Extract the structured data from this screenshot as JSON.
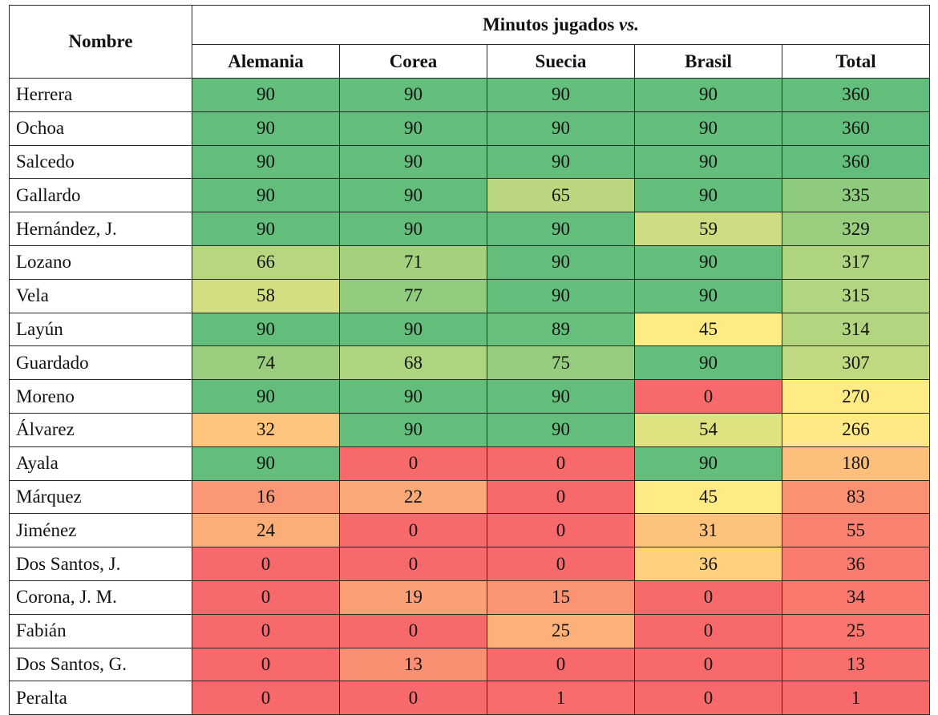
{
  "table": {
    "name_header": "Nombre",
    "group_header": "Minutos jugados",
    "group_header_suffix": "vs.",
    "columns": [
      "Alemania",
      "Corea",
      "Suecia",
      "Brasil",
      "Total"
    ],
    "rows": [
      {
        "name": "Herrera",
        "values": [
          "90",
          "90",
          "90",
          "90",
          "360"
        ]
      },
      {
        "name": "Ochoa",
        "values": [
          "90",
          "90",
          "90",
          "90",
          "360"
        ]
      },
      {
        "name": "Salcedo",
        "values": [
          "90",
          "90",
          "90",
          "90",
          "360"
        ]
      },
      {
        "name": "Gallardo",
        "values": [
          "90",
          "90",
          "65",
          "90",
          "335"
        ]
      },
      {
        "name": "Hernández, J.",
        "values": [
          "90",
          "90",
          "90",
          "59",
          "329"
        ]
      },
      {
        "name": "Lozano",
        "values": [
          "66",
          "71",
          "90",
          "90",
          "317"
        ]
      },
      {
        "name": "Vela",
        "values": [
          "58",
          "77",
          "90",
          "90",
          "315"
        ]
      },
      {
        "name": "Layún",
        "values": [
          "90",
          "90",
          "89",
          "45",
          "314"
        ]
      },
      {
        "name": "Guardado",
        "values": [
          "74",
          "68",
          "75",
          "90",
          "307"
        ]
      },
      {
        "name": "Moreno",
        "values": [
          "90",
          "90",
          "90",
          "0",
          "270"
        ]
      },
      {
        "name": "Álvarez",
        "values": [
          "32",
          "90",
          "90",
          "54",
          "266"
        ]
      },
      {
        "name": "Ayala",
        "values": [
          "90",
          "0",
          "0",
          "90",
          "180"
        ]
      },
      {
        "name": "Márquez",
        "values": [
          "16",
          "22",
          "0",
          "45",
          "83"
        ]
      },
      {
        "name": "Jiménez",
        "values": [
          "24",
          "0",
          "0",
          "31",
          "55"
        ]
      },
      {
        "name": "Dos Santos, J.",
        "values": [
          "0",
          "0",
          "0",
          "36",
          "36"
        ]
      },
      {
        "name": "Corona, J. M.",
        "values": [
          "0",
          "19",
          "15",
          "0",
          "34"
        ]
      },
      {
        "name": "Fabián",
        "values": [
          "0",
          "0",
          "25",
          "0",
          "25"
        ]
      },
      {
        "name": "Dos Santos, G.",
        "values": [
          "0",
          "13",
          "0",
          "0",
          "13"
        ]
      },
      {
        "name": "Peralta",
        "values": [
          "0",
          "0",
          "1",
          "0",
          "1"
        ]
      }
    ]
  },
  "colors": {
    "green": "#63be7b",
    "yellow": "#ffeb84",
    "red": "#f8696b"
  }
}
